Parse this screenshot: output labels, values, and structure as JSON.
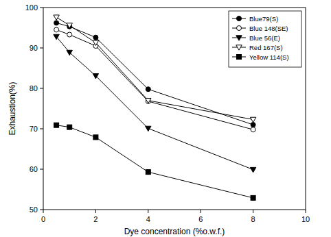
{
  "chart_data": {
    "type": "line",
    "x_label": "Dye concentration (%o.w.f.)",
    "y_label": "Exhaustion(%)",
    "x": [
      0.5,
      1,
      2,
      4,
      8
    ],
    "series": [
      {
        "name": "Blue79(S)",
        "color": "#000000",
        "marker": "circle",
        "values": [
          96.2,
          95.3,
          92.6,
          79.8,
          71.0
        ]
      },
      {
        "name": "Blue 148(SE)",
        "color": "#000000",
        "marker": "circle_open",
        "values": [
          94.5,
          93.3,
          90.5,
          76.8,
          69.8
        ]
      },
      {
        "name": "Blue 56(E)",
        "color": "#000000",
        "marker": "triangle_down",
        "values": [
          92.8,
          88.9,
          83.1,
          70.1,
          59.9
        ]
      },
      {
        "name": "Red 167(S)",
        "color": "#000000",
        "marker": "triangle_down_open",
        "values": [
          97.6,
          95.6,
          91.3,
          77.0,
          72.3
        ]
      },
      {
        "name": "Yellow 114(S)",
        "color": "#000000",
        "marker": "square",
        "values": [
          70.9,
          70.4,
          67.9,
          59.3,
          52.9
        ]
      }
    ],
    "xlim": [
      0,
      10
    ],
    "xticks": [
      0,
      2,
      4,
      6,
      8,
      10
    ],
    "ylim": [
      50,
      100
    ],
    "yticks": [
      50,
      60,
      70,
      80,
      90,
      100
    ],
    "grid": false,
    "legend": "upper right"
  }
}
